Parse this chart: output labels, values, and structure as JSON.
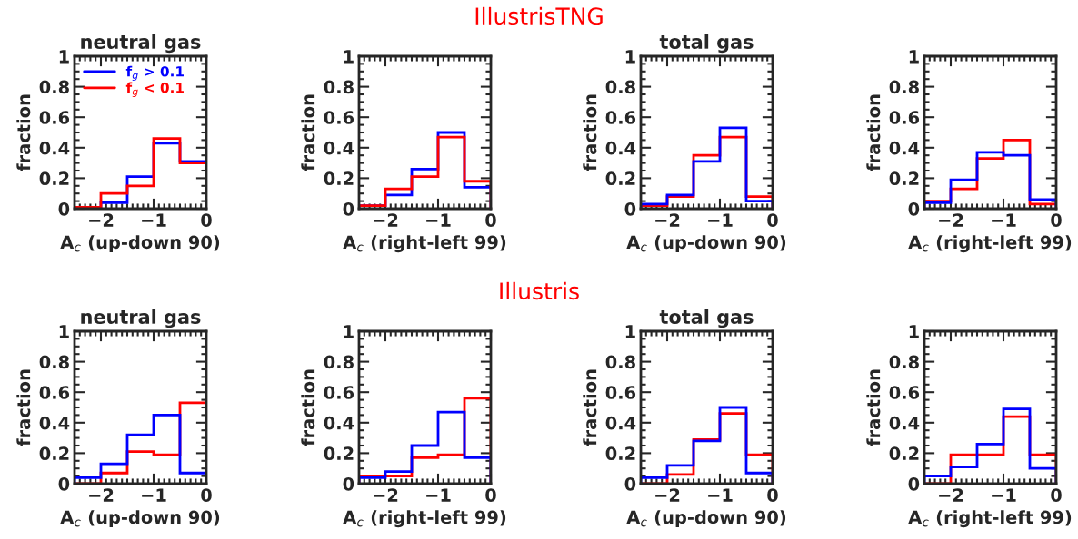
{
  "chart_data": [
    {
      "type": "histogram",
      "title": "neutral gas",
      "annotations": [
        "IllustrisTNG"
      ],
      "xlabel": "A$_{c}$ (up-down 90)",
      "ylabel": "fraction",
      "bins": [
        -2.5,
        -2,
        -1.5,
        -1,
        -0.5,
        0
      ],
      "xlim": [
        -2.5,
        0
      ],
      "ylim": [
        0,
        1
      ],
      "xticks": [
        -2,
        -1,
        0
      ],
      "yticks": [
        0,
        0.2,
        0.4,
        0.6,
        0.8,
        1
      ],
      "legend": "top left",
      "series": [
        {
          "name": "f$_{g}$ > 0.1",
          "color": "#0000ff",
          "values": [
            0.01,
            0.04,
            0.21,
            0.43,
            0.31
          ]
        },
        {
          "name": "f$_{g}$ < 0.1",
          "color": "#ff0000",
          "values": [
            0.01,
            0.1,
            0.15,
            0.46,
            0.3
          ]
        }
      ]
    },
    {
      "type": "histogram",
      "xlabel": "A$_{c}$ (right-left 99)",
      "ylabel": "fraction",
      "bins": [
        -2.5,
        -2,
        -1.5,
        -1,
        -0.5,
        0
      ],
      "xlim": [
        -2.5,
        0
      ],
      "ylim": [
        0,
        1
      ],
      "xticks": [
        -2,
        -1,
        0
      ],
      "yticks": [
        0,
        0.2,
        0.4,
        0.6,
        0.8,
        1
      ],
      "series": [
        {
          "color": "#0000ff",
          "values": [
            0.02,
            0.09,
            0.26,
            0.5,
            0.14
          ]
        },
        {
          "color": "#ff0000",
          "values": [
            0.02,
            0.13,
            0.21,
            0.47,
            0.18
          ]
        }
      ]
    },
    {
      "type": "histogram",
      "title": "total gas",
      "xlabel": "A$_{c}$ (up-down 90)",
      "ylabel": "fraction",
      "bins": [
        -2.5,
        -2,
        -1.5,
        -1,
        -0.5,
        0
      ],
      "xlim": [
        -2.5,
        0
      ],
      "ylim": [
        0,
        1
      ],
      "xticks": [
        -2,
        -1,
        0
      ],
      "yticks": [
        0,
        0.2,
        0.4,
        0.6,
        0.8,
        1
      ],
      "series": [
        {
          "color": "#ff0000",
          "values": [
            0.02,
            0.08,
            0.35,
            0.47,
            0.08
          ]
        },
        {
          "color": "#0000ff",
          "values": [
            0.03,
            0.09,
            0.31,
            0.53,
            0.05
          ]
        }
      ]
    },
    {
      "type": "histogram",
      "xlabel": "A$_{c}$ (right-left 99)",
      "ylabel": "fraction",
      "bins": [
        -2.5,
        -2,
        -1.5,
        -1,
        -0.5,
        0
      ],
      "xlim": [
        -2.5,
        0
      ],
      "ylim": [
        0,
        1
      ],
      "xticks": [
        -2,
        -1,
        0
      ],
      "yticks": [
        0,
        0.2,
        0.4,
        0.6,
        0.8,
        1
      ],
      "series": [
        {
          "color": "#ff0000",
          "values": [
            0.05,
            0.13,
            0.33,
            0.45,
            0.03
          ]
        },
        {
          "color": "#0000ff",
          "values": [
            0.04,
            0.19,
            0.37,
            0.35,
            0.06
          ]
        }
      ]
    },
    {
      "type": "histogram",
      "title": "neutral gas",
      "annotations": [
        "Illustris"
      ],
      "xlabel": "A$_{c}$ (up-down 90)",
      "ylabel": "fraction",
      "bins": [
        -2.5,
        -2,
        -1.5,
        -1,
        -0.5,
        0
      ],
      "xlim": [
        -2.5,
        0
      ],
      "ylim": [
        0,
        1
      ],
      "xticks": [
        -2,
        -1,
        0
      ],
      "yticks": [
        0,
        0.2,
        0.4,
        0.6,
        0.8,
        1
      ],
      "series": [
        {
          "color": "#ff0000",
          "values": [
            0.0,
            0.07,
            0.21,
            0.19,
            0.53
          ]
        },
        {
          "color": "#0000ff",
          "values": [
            0.04,
            0.13,
            0.32,
            0.45,
            0.07
          ]
        }
      ]
    },
    {
      "type": "histogram",
      "xlabel": "A$_{c}$ (right-left 99)",
      "ylabel": "fraction",
      "bins": [
        -2.5,
        -2,
        -1.5,
        -1,
        -0.5,
        0
      ],
      "xlim": [
        -2.5,
        0
      ],
      "ylim": [
        0,
        1
      ],
      "xticks": [
        -2,
        -1,
        0
      ],
      "yticks": [
        0,
        0.2,
        0.4,
        0.6,
        0.8,
        1
      ],
      "series": [
        {
          "color": "#ff0000",
          "values": [
            0.05,
            0.05,
            0.17,
            0.19,
            0.56
          ]
        },
        {
          "color": "#0000ff",
          "values": [
            0.04,
            0.08,
            0.25,
            0.47,
            0.17
          ]
        }
      ]
    },
    {
      "type": "histogram",
      "title": "total gas",
      "xlabel": "A$_{c}$ (up-down 90)",
      "ylabel": "fraction",
      "bins": [
        -2.5,
        -2,
        -1.5,
        -1,
        -0.5,
        0
      ],
      "xlim": [
        -2.5,
        0
      ],
      "ylim": [
        0,
        1
      ],
      "xticks": [
        -2,
        -1,
        0
      ],
      "yticks": [
        0,
        0.2,
        0.4,
        0.6,
        0.8,
        1
      ],
      "series": [
        {
          "color": "#ff0000",
          "values": [
            0.0,
            0.06,
            0.29,
            0.46,
            0.19
          ]
        },
        {
          "color": "#0000ff",
          "values": [
            0.04,
            0.12,
            0.28,
            0.5,
            0.07
          ]
        }
      ]
    },
    {
      "type": "histogram",
      "xlabel": "A$_{c}$ (right-left 99)",
      "ylabel": "fraction",
      "bins": [
        -2.5,
        -2,
        -1.5,
        -1,
        -0.5,
        0
      ],
      "xlim": [
        -2.5,
        0
      ],
      "ylim": [
        0,
        1
      ],
      "xticks": [
        -2,
        -1,
        0
      ],
      "yticks": [
        0,
        0.2,
        0.4,
        0.6,
        0.8,
        1
      ],
      "series": [
        {
          "color": "#ff0000",
          "values": [
            0.0,
            0.19,
            0.19,
            0.44,
            0.19
          ]
        },
        {
          "color": "#0000ff",
          "values": [
            0.05,
            0.11,
            0.26,
            0.49,
            0.1
          ]
        }
      ]
    }
  ]
}
